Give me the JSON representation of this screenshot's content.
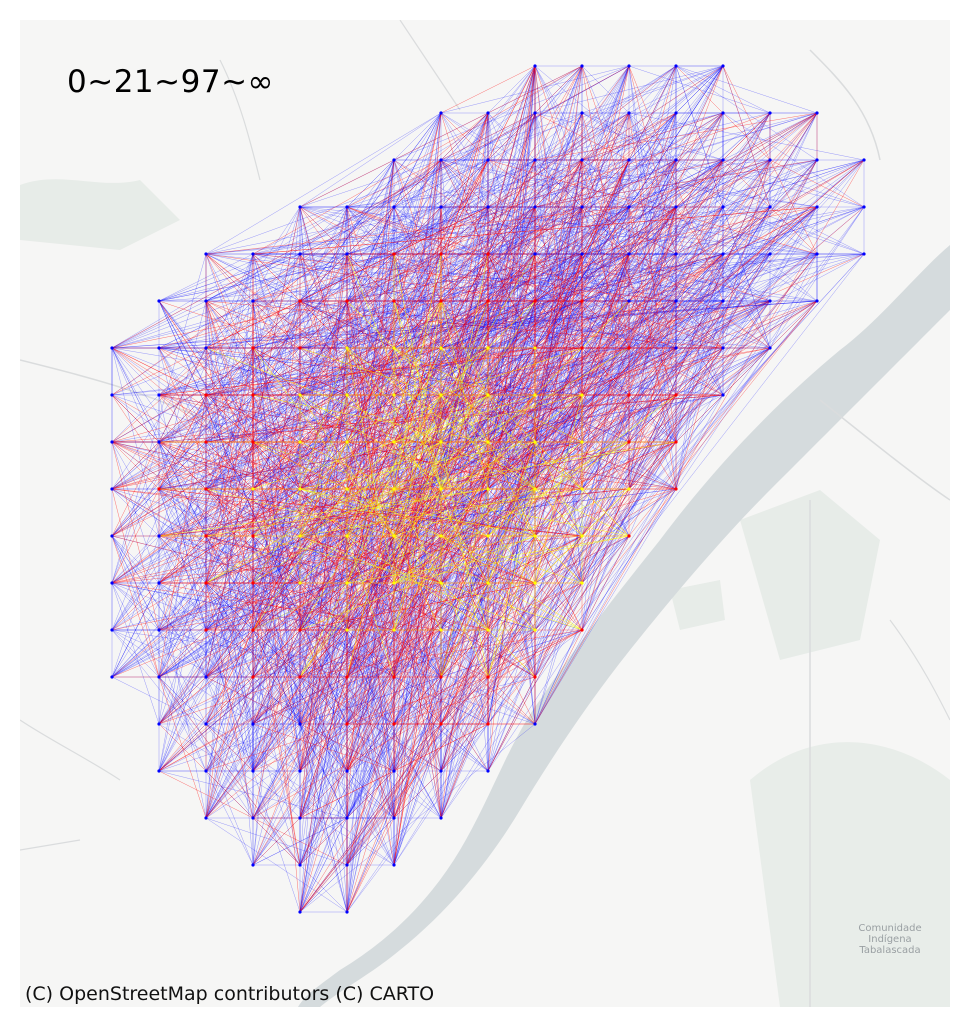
{
  "legend": {
    "text": "0~21~97~∞",
    "bins": [
      "0",
      "21",
      "97",
      "∞"
    ],
    "colors": [
      "#0000ff",
      "#ff0000",
      "#ffff00"
    ]
  },
  "attribution": "(C) OpenStreetMap contributors (C) CARTO",
  "place_label": {
    "line1": "Comunidade",
    "line2": "Indígena",
    "line3": "Tabalascada"
  },
  "basemap": {
    "background": "#f6f6f5",
    "water": "#d4dadc",
    "roads": "#d9dcdd",
    "vegetation": "#e5ebe6"
  }
}
